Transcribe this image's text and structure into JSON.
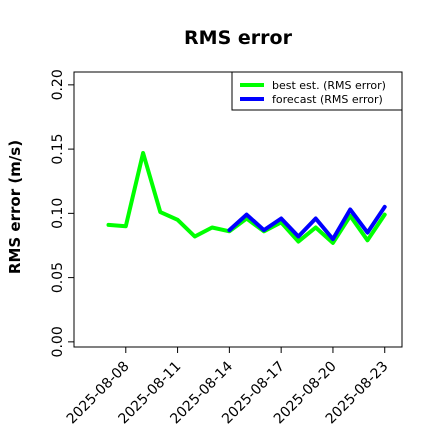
{
  "chart_data": {
    "type": "line",
    "title": "RMS error",
    "xlabel": "",
    "ylabel": "RMS error (m/s)",
    "x_axis": {
      "type": "date",
      "range": [
        "2025-08-05",
        "2025-08-24"
      ],
      "ticks": [
        "2025-08-08",
        "2025-08-11",
        "2025-08-14",
        "2025-08-17",
        "2025-08-20",
        "2025-08-23"
      ],
      "highlight_tick": "2025-08-14",
      "highlight_color": "#228B22"
    },
    "y_axis": {
      "range": [
        -0.004,
        0.21
      ],
      "ticks": [
        0.0,
        0.05,
        0.1,
        0.15,
        0.2
      ],
      "tick_labels": [
        "0.00",
        "0.05",
        "0.10",
        "0.15",
        "0.20"
      ]
    },
    "grid": false,
    "legend_position": "top-right",
    "series": [
      {
        "name": "best est. (RMS error)",
        "color": "#00ff00",
        "x": [
          "2025-08-07",
          "2025-08-08",
          "2025-08-09",
          "2025-08-10",
          "2025-08-11",
          "2025-08-12",
          "2025-08-13",
          "2025-08-14",
          "2025-08-15",
          "2025-08-16",
          "2025-08-17",
          "2025-08-18",
          "2025-08-19",
          "2025-08-20",
          "2025-08-21",
          "2025-08-22",
          "2025-08-23"
        ],
        "y": [
          0.091,
          0.09,
          0.147,
          0.101,
          0.095,
          0.082,
          0.089,
          0.086,
          0.096,
          0.086,
          0.093,
          0.078,
          0.089,
          0.077,
          0.098,
          0.079,
          0.099
        ]
      },
      {
        "name": "forecast (RMS error)",
        "color": "#0000ff",
        "x": [
          "2025-08-14",
          "2025-08-15",
          "2025-08-16",
          "2025-08-17",
          "2025-08-18",
          "2025-08-19",
          "2025-08-20",
          "2025-08-21",
          "2025-08-22",
          "2025-08-23"
        ],
        "y": [
          0.087,
          0.099,
          0.087,
          0.096,
          0.082,
          0.096,
          0.08,
          0.103,
          0.085,
          0.105
        ]
      }
    ]
  }
}
